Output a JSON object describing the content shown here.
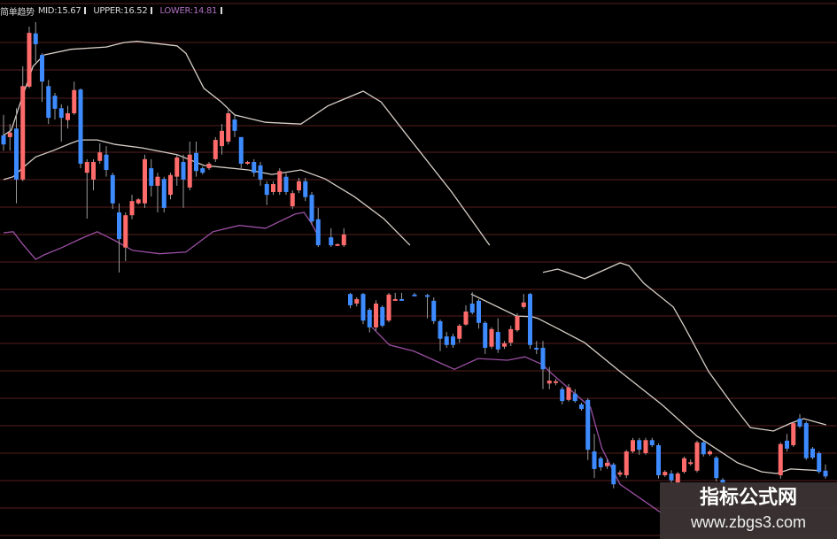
{
  "legend": {
    "indicator_name": "简单趋势",
    "mid": "MID:15.67",
    "upper": "UPPER:16.52",
    "lower": "LOWER:14.81"
  },
  "watermark": {
    "title": "指标公式网",
    "url": "www.zbgs3.com"
  },
  "colors": {
    "background": "#000000",
    "up_candle": "#ff6b6b",
    "down_candle": "#3d8bff",
    "wick": "#9a9a9a",
    "upper_band": "#d6cec6",
    "mid_band": "#d6cec6",
    "lower_band": "#9b4fa3",
    "grid": "#3a1414"
  },
  "chart_data": {
    "type": "candlestick",
    "title": "",
    "xlabel": "",
    "ylabel": "",
    "grid": true,
    "last_values": {
      "MID": 15.67,
      "UPPER": 16.52,
      "LOWER": 14.81
    },
    "candle_fields": [
      "index",
      "open",
      "high",
      "low",
      "close"
    ],
    "candles": [
      [
        0,
        21.61,
        21.97,
        21.34,
        21.45
      ],
      [
        1,
        21.58,
        21.81,
        21.34,
        21.66
      ],
      [
        2,
        21.73,
        22.09,
        20.41,
        20.83
      ],
      [
        3,
        20.83,
        22.83,
        20.8,
        22.48
      ],
      [
        4,
        22.47,
        23.53,
        22.44,
        23.42
      ],
      [
        5,
        23.41,
        23.61,
        22.91,
        23.22
      ],
      [
        6,
        23.03,
        23.06,
        22.2,
        22.56
      ],
      [
        7,
        22.48,
        22.59,
        21.81,
        21.92
      ],
      [
        8,
        22.31,
        22.36,
        21.89,
        22.08
      ],
      [
        9,
        22.09,
        22.16,
        21.5,
        21.92
      ],
      [
        10,
        21.88,
        22.13,
        21.73,
        22.0
      ],
      [
        11,
        22.0,
        22.56,
        21.97,
        22.41
      ],
      [
        12,
        22.42,
        22.44,
        21.03,
        21.11
      ],
      [
        13,
        20.95,
        21.19,
        20.14,
        21.14
      ],
      [
        14,
        20.83,
        21.19,
        20.64,
        21.14
      ],
      [
        15,
        21.16,
        21.47,
        21.11,
        21.31
      ],
      [
        16,
        21.27,
        21.42,
        20.88,
        21.0
      ],
      [
        17,
        20.91,
        20.95,
        20.31,
        20.41
      ],
      [
        18,
        20.25,
        20.41,
        19.19,
        19.78
      ],
      [
        19,
        19.63,
        20.25,
        19.39,
        20.2
      ],
      [
        20,
        20.2,
        20.56,
        20.13,
        20.45
      ],
      [
        21,
        20.41,
        20.5,
        20.39,
        20.48
      ],
      [
        22,
        20.41,
        21.27,
        20.33,
        21.19
      ],
      [
        23,
        21.03,
        21.19,
        20.53,
        20.72
      ],
      [
        24,
        20.72,
        20.95,
        20.25,
        20.88
      ],
      [
        25,
        20.84,
        20.88,
        20.25,
        20.33
      ],
      [
        26,
        20.56,
        20.95,
        20.48,
        20.91
      ],
      [
        27,
        20.88,
        21.27,
        20.72,
        21.22
      ],
      [
        28,
        21.14,
        21.27,
        20.33,
        20.83
      ],
      [
        29,
        20.69,
        21.5,
        20.64,
        21.27
      ],
      [
        30,
        21.3,
        21.5,
        20.88,
        20.98
      ],
      [
        31,
        21.03,
        21.06,
        20.92,
        20.95
      ],
      [
        32,
        21.03,
        21.14,
        21.0,
        21.11
      ],
      [
        33,
        21.19,
        21.58,
        21.14,
        21.53
      ],
      [
        34,
        21.42,
        21.81,
        21.27,
        21.69
      ],
      [
        35,
        21.5,
        22.09,
        21.45,
        22.0
      ],
      [
        36,
        21.89,
        21.97,
        21.58,
        21.69
      ],
      [
        37,
        21.58,
        21.58,
        21.03,
        21.11
      ],
      [
        38,
        21.11,
        21.16,
        21.09,
        21.14
      ],
      [
        39,
        21.14,
        21.19,
        20.88,
        20.95
      ],
      [
        40,
        21.08,
        21.14,
        20.72,
        20.83
      ],
      [
        41,
        20.75,
        20.8,
        20.38,
        20.56
      ],
      [
        42,
        20.61,
        20.8,
        20.56,
        20.75
      ],
      [
        43,
        20.61,
        21.03,
        20.56,
        20.98
      ],
      [
        44,
        20.88,
        20.94,
        20.56,
        20.61
      ],
      [
        45,
        20.36,
        20.64,
        20.31,
        20.59
      ],
      [
        46,
        20.64,
        20.86,
        20.59,
        20.8
      ],
      [
        47,
        20.8,
        20.86,
        20.45,
        20.52
      ],
      [
        48,
        20.56,
        20.61,
        20.03,
        20.09
      ],
      [
        49,
        20.13,
        20.33,
        19.64,
        19.67
      ],
      [
        51,
        19.81,
        19.97,
        19.64,
        19.67
      ],
      [
        52,
        19.67,
        19.7,
        19.66,
        19.69
      ],
      [
        53,
        19.67,
        19.97,
        19.64,
        19.86
      ],
      [
        54,
        18.81,
        18.83,
        18.56,
        18.61
      ],
      [
        55,
        18.64,
        18.75,
        18.59,
        18.72
      ],
      [
        56,
        18.81,
        18.83,
        18.28,
        18.34
      ],
      [
        57,
        18.53,
        18.56,
        18.13,
        18.22
      ],
      [
        58,
        18.22,
        18.7,
        18.16,
        18.64
      ],
      [
        59,
        18.58,
        18.61,
        18.22,
        18.25
      ],
      [
        60,
        18.34,
        18.83,
        18.31,
        18.8
      ],
      [
        61,
        18.7,
        18.83,
        18.69,
        18.72
      ],
      [
        62,
        18.72,
        18.83,
        18.69,
        18.7
      ],
      [
        64,
        18.8,
        18.83,
        18.77,
        18.78
      ],
      [
        66,
        18.79,
        18.81,
        18.38,
        18.77
      ],
      [
        67,
        18.69,
        18.75,
        18.28,
        18.33
      ],
      [
        68,
        18.33,
        18.36,
        17.8,
        18.02
      ],
      [
        69,
        18.06,
        18.14,
        17.86,
        17.91
      ],
      [
        70,
        18.06,
        18.11,
        17.86,
        17.91
      ],
      [
        71,
        18.02,
        18.28,
        17.95,
        18.25
      ],
      [
        72,
        18.27,
        18.61,
        18.25,
        18.5
      ],
      [
        73,
        18.64,
        18.84,
        18.45,
        18.48
      ],
      [
        74,
        18.69,
        18.72,
        18.2,
        18.3
      ],
      [
        75,
        18.3,
        18.33,
        17.75,
        17.86
      ],
      [
        76,
        17.88,
        18.22,
        17.84,
        18.19
      ],
      [
        77,
        18.14,
        18.38,
        17.77,
        17.83
      ],
      [
        78,
        17.88,
        17.98,
        17.84,
        17.94
      ],
      [
        79,
        17.95,
        18.25,
        17.89,
        18.19
      ],
      [
        80,
        18.17,
        18.47,
        18.14,
        18.42
      ],
      [
        81,
        18.58,
        18.81,
        18.55,
        18.66
      ],
      [
        82,
        18.81,
        18.83,
        17.84,
        17.91
      ],
      [
        83,
        17.86,
        17.98,
        17.75,
        17.84
      ],
      [
        84,
        17.86,
        17.98,
        17.13,
        17.48
      ],
      [
        85,
        17.23,
        17.52,
        17.13,
        17.28
      ],
      [
        86,
        17.25,
        17.31,
        17.2,
        17.27
      ],
      [
        87,
        17.13,
        17.17,
        16.86,
        16.92
      ],
      [
        88,
        16.94,
        17.22,
        16.91,
        17.16
      ],
      [
        89,
        17.05,
        17.13,
        16.89,
        16.92
      ],
      [
        90,
        16.86,
        16.89,
        16.75,
        16.78
      ],
      [
        91,
        16.94,
        16.97,
        15.88,
        16.06
      ],
      [
        92,
        16.03,
        16.34,
        15.56,
        15.72
      ],
      [
        93,
        15.91,
        15.94,
        15.69,
        15.75
      ],
      [
        94,
        15.77,
        15.89,
        15.72,
        15.83
      ],
      [
        95,
        15.8,
        15.83,
        15.38,
        15.45
      ],
      [
        96,
        15.62,
        15.7,
        15.58,
        15.66
      ],
      [
        97,
        15.61,
        16.06,
        15.56,
        16.03
      ],
      [
        98,
        16.03,
        16.27,
        16.0,
        16.23
      ],
      [
        99,
        16.23,
        16.27,
        15.97,
        16.06
      ],
      [
        100,
        16.0,
        16.27,
        15.97,
        16.23
      ],
      [
        101,
        16.23,
        16.27,
        16.11,
        16.14
      ],
      [
        102,
        16.14,
        16.17,
        15.55,
        15.61
      ],
      [
        103,
        15.61,
        15.7,
        15.58,
        15.67
      ],
      [
        104,
        15.64,
        15.7,
        15.48,
        15.52
      ],
      [
        105,
        15.48,
        15.67,
        15.45,
        15.64
      ],
      [
        106,
        15.67,
        15.94,
        15.64,
        15.91
      ],
      [
        107,
        15.81,
        15.89,
        15.78,
        15.84
      ],
      [
        108,
        15.69,
        16.22,
        15.66,
        16.19
      ],
      [
        109,
        16.19,
        16.22,
        15.94,
        15.98
      ],
      [
        110,
        15.98,
        16.06,
        15.95,
        16.03
      ],
      [
        111,
        15.92,
        15.95,
        15.5,
        15.56
      ],
      [
        112,
        15.53,
        15.56,
        15.42,
        15.45
      ],
      [
        121,
        15.61,
        16.19,
        15.55,
        16.16
      ],
      [
        122,
        16.22,
        16.34,
        16.03,
        16.08
      ],
      [
        123,
        16.14,
        16.56,
        16.11,
        16.53
      ],
      [
        124,
        16.61,
        16.69,
        16.44,
        16.47
      ],
      [
        125,
        16.53,
        16.56,
        15.88,
        15.91
      ],
      [
        126,
        16.08,
        16.11,
        15.89,
        15.92
      ],
      [
        127,
        16.0,
        16.03,
        15.64,
        15.67
      ],
      [
        128,
        15.69,
        15.8,
        15.55,
        15.59
      ]
    ],
    "series": [
      {
        "name": "UPPER",
        "segments": [
          [
            [
              0,
              21.61
            ],
            [
              1.2,
              21.7
            ],
            [
              2.9,
              22.28
            ],
            [
              4.6,
              22.83
            ],
            [
              6.3,
              23.03
            ],
            [
              10.5,
              23.13
            ],
            [
              16,
              23.17
            ],
            [
              18.8,
              23.25
            ],
            [
              20.8,
              23.27
            ],
            [
              27,
              23.19
            ],
            [
              28.4,
              23.06
            ],
            [
              31.2,
              22.44
            ],
            [
              33.9,
              22.2
            ],
            [
              36,
              21.97
            ],
            [
              40.8,
              21.84
            ],
            [
              46.3,
              21.81
            ],
            [
              50.5,
              22.13
            ],
            [
              56,
              22.39
            ],
            [
              58.8,
              22.2
            ],
            [
              62.5,
              21.66
            ],
            [
              69.8,
              20.61
            ],
            [
              75.7,
              19.67
            ]
          ],
          [
            [
              84,
              19.19
            ],
            [
              86.3,
              19.25
            ],
            [
              90.5,
              19.08
            ],
            [
              96,
              19.36
            ],
            [
              97.4,
              19.31
            ],
            [
              99.7,
              19.0
            ],
            [
              104.3,
              18.58
            ],
            [
              106.1,
              18.22
            ],
            [
              109.8,
              17.44
            ],
            [
              113.5,
              16.86
            ],
            [
              116.3,
              16.45
            ],
            [
              119.9,
              16.39
            ],
            [
              122.6,
              16.53
            ],
            [
              124.6,
              16.61
            ],
            [
              128.1,
              16.5
            ]
          ]
        ]
      },
      {
        "name": "MID",
        "segments": [
          [
            [
              0,
              20.83
            ],
            [
              1.5,
              20.88
            ],
            [
              2.9,
              21.03
            ],
            [
              5,
              21.23
            ],
            [
              7.7,
              21.34
            ],
            [
              10.5,
              21.47
            ],
            [
              11.9,
              21.53
            ],
            [
              14.6,
              21.53
            ],
            [
              17.4,
              21.45
            ],
            [
              21.5,
              21.39
            ],
            [
              27,
              21.27
            ],
            [
              31.2,
              21.08
            ],
            [
              38.1,
              21.0
            ],
            [
              41.8,
              20.92
            ],
            [
              46.3,
              21.0
            ],
            [
              50.1,
              20.84
            ],
            [
              54.6,
              20.53
            ],
            [
              59.2,
              20.14
            ],
            [
              63.3,
              19.67
            ]
          ],
          [
            [
              72.8,
              18.81
            ],
            [
              79.9,
              18.42
            ],
            [
              82.2,
              18.41
            ],
            [
              83.2,
              18.38
            ],
            [
              86.8,
              18.17
            ],
            [
              90.5,
              17.95
            ],
            [
              96,
              17.44
            ],
            [
              102.5,
              16.86
            ],
            [
              108,
              16.3
            ],
            [
              114.3,
              15.83
            ],
            [
              118.1,
              15.67
            ],
            [
              120.4,
              15.64
            ],
            [
              122.6,
              15.72
            ],
            [
              127.3,
              15.69
            ]
          ]
        ]
      },
      {
        "name": "LOWER",
        "segments": [
          [
            [
              0,
              19.89
            ],
            [
              1.5,
              19.91
            ],
            [
              2.9,
              19.7
            ],
            [
              5,
              19.42
            ],
            [
              6.3,
              19.5
            ],
            [
              9.1,
              19.63
            ],
            [
              11.9,
              19.78
            ],
            [
              14.6,
              19.91
            ],
            [
              17.4,
              19.75
            ],
            [
              20.1,
              19.58
            ],
            [
              24.3,
              19.52
            ],
            [
              28.4,
              19.55
            ],
            [
              32.6,
              19.91
            ],
            [
              36.7,
              20.02
            ],
            [
              40.8,
              19.97
            ],
            [
              45.4,
              20.22
            ],
            [
              46.8,
              20.25
            ],
            [
              48,
              20.05
            ],
            [
              49.1,
              19.81
            ]
          ],
          [
            [
              57.4,
              18.22
            ],
            [
              60.1,
              17.91
            ],
            [
              63.9,
              17.8
            ],
            [
              70.2,
              17.48
            ],
            [
              73.9,
              17.67
            ],
            [
              78.5,
              17.64
            ],
            [
              81.2,
              17.7
            ],
            [
              84,
              17.56
            ],
            [
              85,
              17.44
            ],
            [
              91.4,
              16.81
            ],
            [
              93.2,
              16.08
            ],
            [
              96,
              15.45
            ],
            [
              102.5,
              14.94
            ]
          ]
        ]
      }
    ]
  }
}
